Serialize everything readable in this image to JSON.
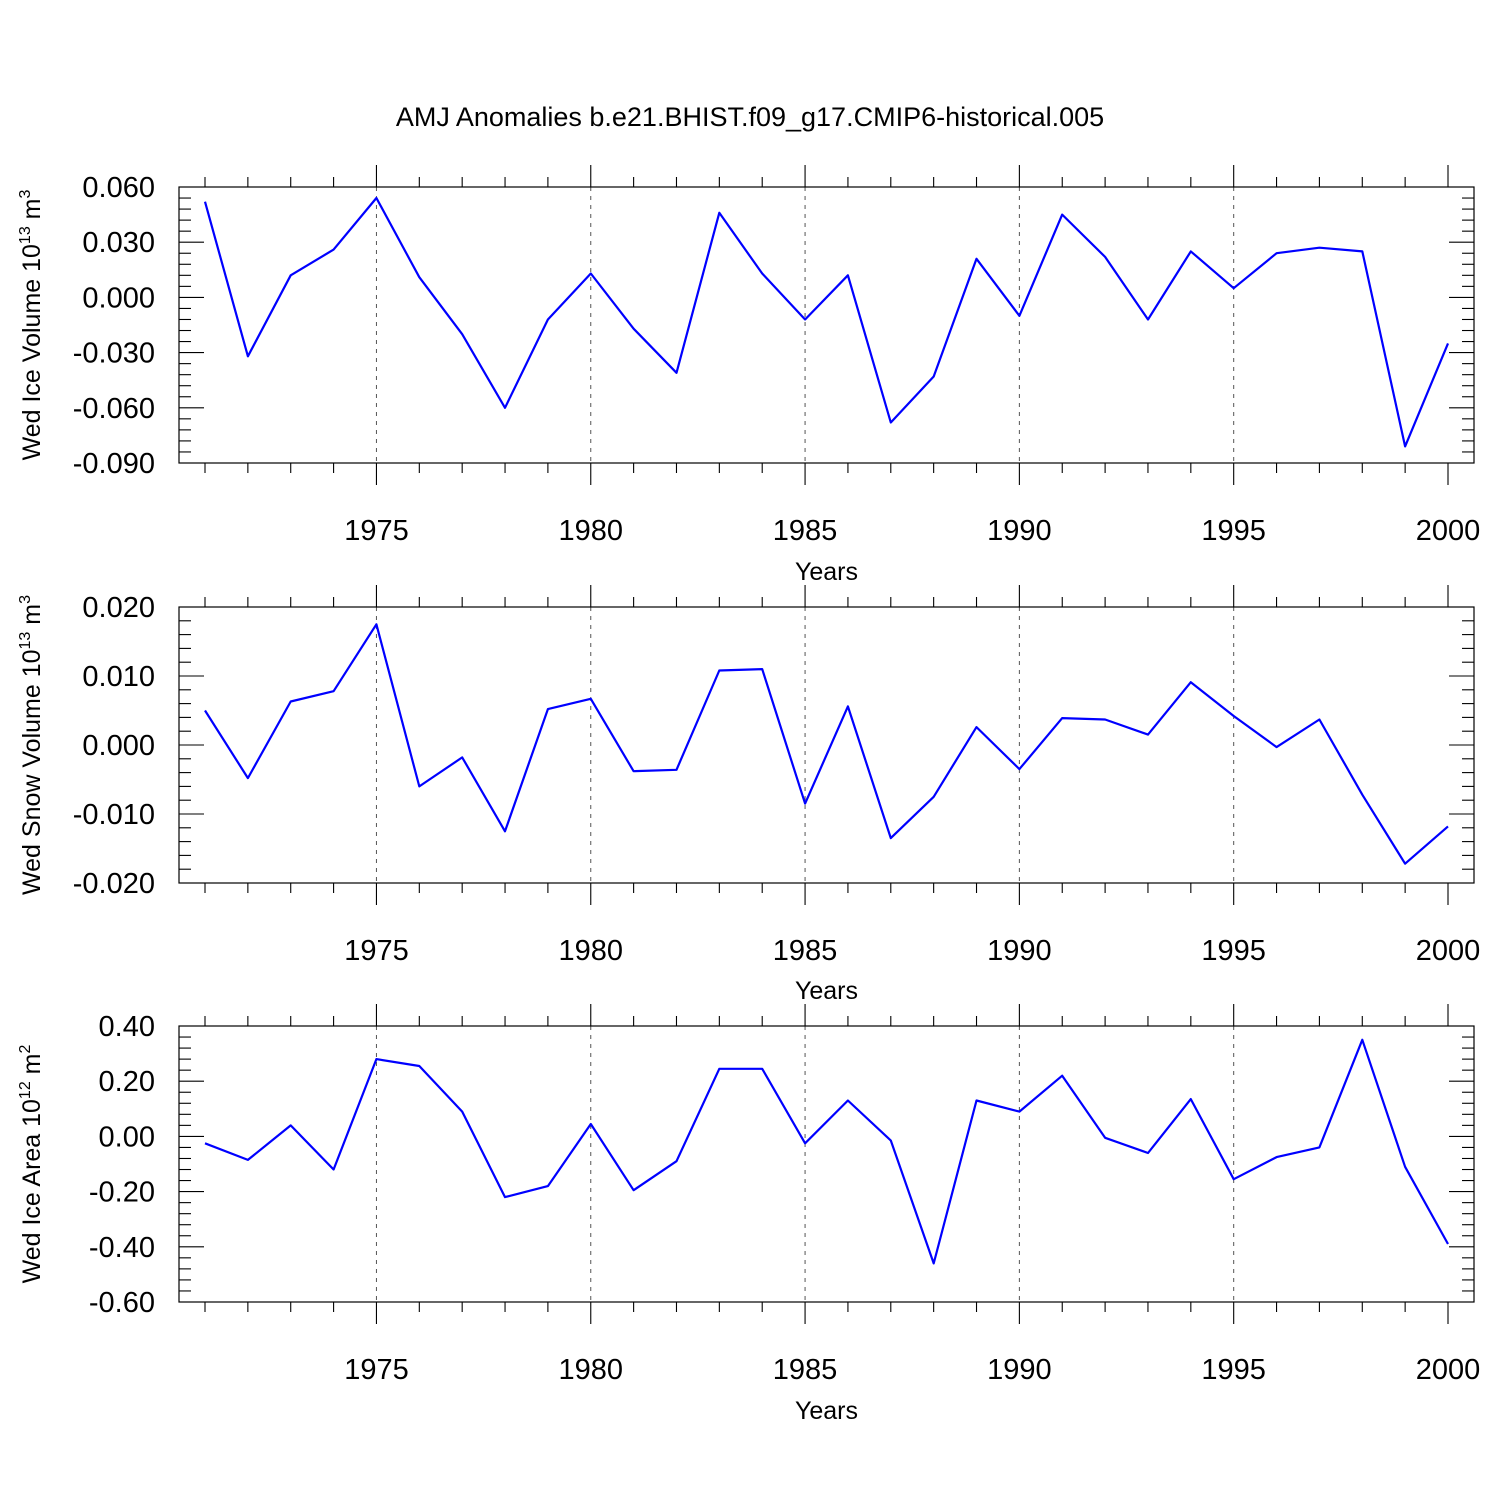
{
  "chart_data": [
    {
      "type": "line",
      "title": "AMJ Anomalies b.e21.BHIST.f09_g17.CMIP6-historical.005",
      "xlabel": "Years",
      "ylabel": "Wed Ice Volume 10",
      "ylabel_exp": "13",
      "ylabel_unit": " m",
      "ylabel_unit_exp": "3",
      "xlim": [
        1971,
        2000
      ],
      "ylim": [
        -0.09,
        0.06
      ],
      "xticks": [
        1975,
        1980,
        1985,
        1990,
        1995,
        2000
      ],
      "xtick_labels": [
        "1975",
        "1980",
        "1985",
        "1990",
        "1995",
        "2000"
      ],
      "yticks": [
        0.06,
        0.03,
        0.0,
        -0.03,
        -0.06,
        -0.09
      ],
      "ytick_labels": [
        "0.060",
        "0.030",
        "0.000",
        "-0.030",
        "-0.060",
        "-0.090"
      ],
      "grid": "vertical dashed at labeled years",
      "color": "#0000ff",
      "series": [
        {
          "name": "Wed Ice Volume",
          "x": [
            1971,
            1972,
            1973,
            1974,
            1975,
            1976,
            1977,
            1978,
            1979,
            1980,
            1981,
            1982,
            1983,
            1984,
            1985,
            1986,
            1987,
            1988,
            1989,
            1990,
            1991,
            1992,
            1993,
            1994,
            1995,
            1996,
            1997,
            1998,
            1999,
            2000
          ],
          "values": [
            0.052,
            -0.032,
            0.012,
            0.026,
            0.054,
            0.011,
            -0.02,
            -0.06,
            -0.012,
            0.013,
            -0.017,
            -0.041,
            0.046,
            0.013,
            -0.012,
            0.012,
            -0.068,
            -0.043,
            0.021,
            -0.01,
            0.045,
            0.022,
            -0.012,
            0.025,
            0.005,
            0.024,
            0.027,
            0.025,
            -0.081,
            -0.025
          ]
        }
      ]
    },
    {
      "type": "line",
      "xlabel": "Years",
      "ylabel": "Wed Snow Volume 10",
      "ylabel_exp": "13",
      "ylabel_unit": " m",
      "ylabel_unit_exp": "3",
      "xlim": [
        1971,
        2000
      ],
      "ylim": [
        -0.02,
        0.02
      ],
      "xticks": [
        1975,
        1980,
        1985,
        1990,
        1995,
        2000
      ],
      "xtick_labels": [
        "1975",
        "1980",
        "1985",
        "1990",
        "1995",
        "2000"
      ],
      "yticks": [
        0.02,
        0.01,
        0.0,
        -0.01,
        -0.02
      ],
      "ytick_labels": [
        "0.020",
        "0.010",
        "0.000",
        "-0.010",
        "-0.020"
      ],
      "grid": "vertical dashed at labeled years",
      "color": "#0000ff",
      "series": [
        {
          "name": "Wed Snow Volume",
          "x": [
            1971,
            1972,
            1973,
            1974,
            1975,
            1976,
            1977,
            1978,
            1979,
            1980,
            1981,
            1982,
            1983,
            1984,
            1985,
            1986,
            1987,
            1988,
            1989,
            1990,
            1991,
            1992,
            1993,
            1994,
            1995,
            1996,
            1997,
            1998,
            1999,
            2000
          ],
          "values": [
            0.005,
            -0.0048,
            0.0063,
            0.0078,
            0.0175,
            -0.006,
            -0.0018,
            -0.0125,
            0.0052,
            0.0067,
            -0.0038,
            -0.0036,
            0.0108,
            0.011,
            -0.0085,
            0.0056,
            -0.0135,
            -0.0075,
            0.0026,
            -0.0035,
            0.0039,
            0.0037,
            0.0015,
            0.0091,
            0.0042,
            -0.0003,
            0.0037,
            -0.0072,
            -0.0172,
            -0.0118
          ]
        }
      ]
    },
    {
      "type": "line",
      "xlabel": "Years",
      "ylabel": "Wed Ice Area 10",
      "ylabel_exp": "12",
      "ylabel_unit": " m",
      "ylabel_unit_exp": "2",
      "xlim": [
        1971,
        2000
      ],
      "ylim": [
        -0.6,
        0.4
      ],
      "xticks": [
        1975,
        1980,
        1985,
        1990,
        1995,
        2000
      ],
      "xtick_labels": [
        "1975",
        "1980",
        "1985",
        "1990",
        "1995",
        "2000"
      ],
      "yticks": [
        0.4,
        0.2,
        0.0,
        -0.2,
        -0.4,
        -0.6
      ],
      "ytick_labels": [
        "0.40",
        "0.20",
        "0.00",
        "-0.20",
        "-0.40",
        "-0.60"
      ],
      "grid": "vertical dashed at labeled years",
      "color": "#0000ff",
      "series": [
        {
          "name": "Wed Ice Area",
          "x": [
            1971,
            1972,
            1973,
            1974,
            1975,
            1976,
            1977,
            1978,
            1979,
            1980,
            1981,
            1982,
            1983,
            1984,
            1985,
            1986,
            1987,
            1988,
            1989,
            1990,
            1991,
            1992,
            1993,
            1994,
            1995,
            1996,
            1997,
            1998,
            1999,
            2000
          ],
          "values": [
            -0.025,
            -0.085,
            0.04,
            -0.12,
            0.28,
            0.255,
            0.09,
            -0.22,
            -0.18,
            0.045,
            -0.195,
            -0.09,
            0.245,
            0.245,
            -0.025,
            0.13,
            -0.015,
            -0.46,
            0.13,
            0.09,
            0.22,
            -0.005,
            -0.06,
            0.135,
            -0.155,
            -0.075,
            -0.04,
            0.35,
            -0.11,
            -0.39
          ]
        }
      ]
    }
  ]
}
